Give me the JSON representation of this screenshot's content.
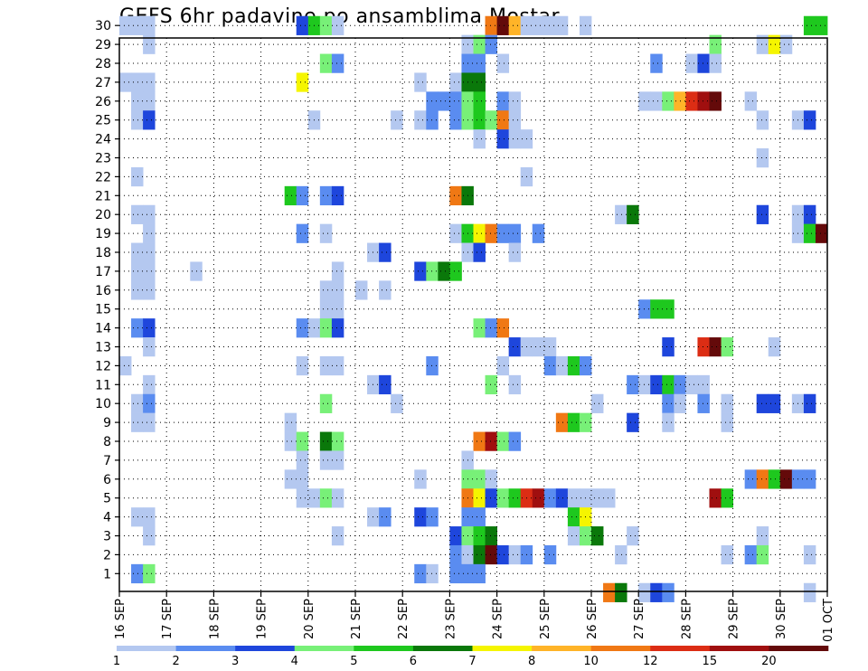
{
  "chart_data": {
    "type": "heatmap",
    "title": "GEFS 6hr padavine po ansamblima Mostar",
    "xlabel": "",
    "ylabel": "",
    "y_ticks": [
      "1",
      "2",
      "3",
      "4",
      "5",
      "6",
      "7",
      "8",
      "9",
      "10",
      "11",
      "12",
      "13",
      "14",
      "15",
      "16",
      "17",
      "18",
      "19",
      "20",
      "21",
      "22",
      "23",
      "24",
      "25",
      "26",
      "27",
      "28",
      "29",
      "30"
    ],
    "x_ticks": [
      "16 SEP",
      "17 SEP",
      "18 SEP",
      "19 SEP",
      "20 SEP",
      "21 SEP",
      "22 SEP",
      "23 SEP",
      "24 SEP",
      "25 SEP",
      "26 SEP",
      "27 SEP",
      "28 SEP",
      "29 SEP",
      "30 SEP",
      "01 OCT"
    ],
    "x_steps_per_day": 4,
    "x_steps_total": 60,
    "grid": true,
    "legend": {
      "placement": "bottom",
      "labels": [
        "1",
        "2",
        "3",
        "4",
        "5",
        "6",
        "7",
        "8",
        "10",
        "12",
        "15",
        "20"
      ],
      "colors": [
        "#b4c8f0",
        "#5a8cf0",
        "#1e46dc",
        "#78f078",
        "#1ec81e",
        "#0a780a",
        "#f5f500",
        "#ffb428",
        "#f07814",
        "#dc2d14",
        "#a00f0f",
        "#640a0a"
      ]
    },
    "cells": [
      [
        30,
        0,
        1
      ],
      [
        30,
        1,
        1
      ],
      [
        30,
        2,
        1
      ],
      [
        30,
        15,
        3
      ],
      [
        30,
        16,
        5
      ],
      [
        30,
        17,
        4
      ],
      [
        30,
        18,
        1
      ],
      [
        30,
        31,
        9
      ],
      [
        30,
        32,
        12
      ],
      [
        30,
        33,
        8
      ],
      [
        30,
        34,
        1
      ],
      [
        30,
        35,
        1
      ],
      [
        30,
        36,
        1
      ],
      [
        30,
        37,
        1
      ],
      [
        30,
        39,
        1
      ],
      [
        30,
        58,
        5
      ],
      [
        30,
        59,
        5
      ],
      [
        29,
        2,
        1
      ],
      [
        29,
        29,
        1
      ],
      [
        29,
        30,
        4
      ],
      [
        29,
        31,
        2
      ],
      [
        29,
        50,
        4
      ],
      [
        29,
        54,
        1
      ],
      [
        29,
        55,
        7
      ],
      [
        29,
        56,
        1
      ],
      [
        28,
        17,
        4
      ],
      [
        28,
        18,
        2
      ],
      [
        28,
        29,
        2
      ],
      [
        28,
        30,
        2
      ],
      [
        28,
        32,
        1
      ],
      [
        28,
        45,
        2
      ],
      [
        28,
        48,
        1
      ],
      [
        28,
        49,
        3
      ],
      [
        28,
        50,
        1
      ],
      [
        27,
        0,
        1
      ],
      [
        27,
        1,
        1
      ],
      [
        27,
        2,
        1
      ],
      [
        27,
        15,
        7
      ],
      [
        27,
        25,
        1
      ],
      [
        27,
        28,
        1
      ],
      [
        27,
        29,
        6
      ],
      [
        27,
        30,
        6
      ],
      [
        26,
        1,
        1
      ],
      [
        26,
        2,
        1
      ],
      [
        26,
        26,
        2
      ],
      [
        26,
        27,
        2
      ],
      [
        26,
        28,
        2
      ],
      [
        26,
        29,
        4
      ],
      [
        26,
        30,
        5
      ],
      [
        26,
        32,
        2
      ],
      [
        26,
        33,
        1
      ],
      [
        26,
        44,
        1
      ],
      [
        26,
        45,
        1
      ],
      [
        26,
        46,
        4
      ],
      [
        26,
        47,
        8
      ],
      [
        26,
        48,
        10
      ],
      [
        26,
        49,
        11
      ],
      [
        26,
        50,
        12
      ],
      [
        26,
        53,
        1
      ],
      [
        25,
        1,
        1
      ],
      [
        25,
        2,
        3
      ],
      [
        25,
        16,
        1
      ],
      [
        25,
        23,
        1
      ],
      [
        25,
        25,
        1
      ],
      [
        25,
        26,
        2
      ],
      [
        25,
        28,
        2
      ],
      [
        25,
        29,
        4
      ],
      [
        25,
        30,
        5
      ],
      [
        25,
        31,
        4
      ],
      [
        25,
        32,
        9
      ],
      [
        25,
        33,
        1
      ],
      [
        25,
        54,
        1
      ],
      [
        25,
        57,
        1
      ],
      [
        25,
        58,
        3
      ],
      [
        24,
        30,
        1
      ],
      [
        24,
        32,
        3
      ],
      [
        24,
        33,
        1
      ],
      [
        24,
        34,
        1
      ],
      [
        23,
        54,
        1
      ],
      [
        22,
        1,
        1
      ],
      [
        22,
        34,
        1
      ],
      [
        21,
        14,
        5
      ],
      [
        21,
        15,
        2
      ],
      [
        21,
        17,
        2
      ],
      [
        21,
        18,
        3
      ],
      [
        21,
        28,
        9
      ],
      [
        21,
        29,
        6
      ],
      [
        20,
        1,
        1
      ],
      [
        20,
        2,
        1
      ],
      [
        20,
        42,
        1
      ],
      [
        20,
        43,
        6
      ],
      [
        20,
        54,
        3
      ],
      [
        20,
        57,
        1
      ],
      [
        20,
        58,
        3
      ],
      [
        19,
        2,
        1
      ],
      [
        19,
        15,
        2
      ],
      [
        19,
        17,
        1
      ],
      [
        19,
        28,
        1
      ],
      [
        19,
        29,
        5
      ],
      [
        19,
        30,
        7
      ],
      [
        19,
        31,
        9
      ],
      [
        19,
        32,
        2
      ],
      [
        19,
        33,
        2
      ],
      [
        19,
        35,
        2
      ],
      [
        19,
        57,
        1
      ],
      [
        19,
        58,
        5
      ],
      [
        19,
        59,
        12
      ],
      [
        18,
        1,
        1
      ],
      [
        18,
        2,
        1
      ],
      [
        18,
        21,
        1
      ],
      [
        18,
        22,
        3
      ],
      [
        18,
        29,
        1
      ],
      [
        18,
        30,
        3
      ],
      [
        18,
        33,
        1
      ],
      [
        17,
        1,
        1
      ],
      [
        17,
        2,
        1
      ],
      [
        17,
        6,
        1
      ],
      [
        17,
        18,
        1
      ],
      [
        17,
        25,
        3
      ],
      [
        17,
        26,
        4
      ],
      [
        17,
        27,
        6
      ],
      [
        17,
        28,
        5
      ],
      [
        16,
        1,
        1
      ],
      [
        16,
        2,
        1
      ],
      [
        16,
        17,
        1
      ],
      [
        16,
        18,
        1
      ],
      [
        16,
        20,
        1
      ],
      [
        16,
        22,
        1
      ],
      [
        15,
        17,
        1
      ],
      [
        15,
        18,
        1
      ],
      [
        15,
        44,
        2
      ],
      [
        15,
        45,
        5
      ],
      [
        15,
        46,
        5
      ],
      [
        14,
        1,
        2
      ],
      [
        14,
        2,
        3
      ],
      [
        14,
        15,
        2
      ],
      [
        14,
        16,
        1
      ],
      [
        14,
        17,
        4
      ],
      [
        14,
        18,
        3
      ],
      [
        14,
        30,
        4
      ],
      [
        14,
        31,
        2
      ],
      [
        14,
        32,
        9
      ],
      [
        13,
        2,
        1
      ],
      [
        13,
        33,
        3
      ],
      [
        13,
        34,
        1
      ],
      [
        13,
        35,
        1
      ],
      [
        13,
        36,
        1
      ],
      [
        13,
        46,
        3
      ],
      [
        13,
        49,
        10
      ],
      [
        13,
        50,
        12
      ],
      [
        13,
        51,
        4
      ],
      [
        13,
        55,
        1
      ],
      [
        12,
        0,
        1
      ],
      [
        12,
        15,
        1
      ],
      [
        12,
        17,
        1
      ],
      [
        12,
        18,
        1
      ],
      [
        12,
        26,
        2
      ],
      [
        12,
        32,
        1
      ],
      [
        12,
        36,
        2
      ],
      [
        12,
        37,
        1
      ],
      [
        12,
        38,
        5
      ],
      [
        12,
        39,
        2
      ],
      [
        11,
        2,
        1
      ],
      [
        11,
        21,
        1
      ],
      [
        11,
        22,
        3
      ],
      [
        11,
        31,
        4
      ],
      [
        11,
        33,
        1
      ],
      [
        11,
        43,
        2
      ],
      [
        11,
        44,
        1
      ],
      [
        11,
        45,
        3
      ],
      [
        11,
        46,
        5
      ],
      [
        11,
        47,
        2
      ],
      [
        11,
        48,
        1
      ],
      [
        11,
        49,
        1
      ],
      [
        10,
        1,
        1
      ],
      [
        10,
        2,
        2
      ],
      [
        10,
        17,
        4
      ],
      [
        10,
        23,
        1
      ],
      [
        10,
        40,
        1
      ],
      [
        10,
        46,
        2
      ],
      [
        10,
        47,
        1
      ],
      [
        10,
        49,
        2
      ],
      [
        10,
        51,
        1
      ],
      [
        10,
        54,
        3
      ],
      [
        10,
        55,
        3
      ],
      [
        10,
        57,
        1
      ],
      [
        10,
        58,
        3
      ],
      [
        9,
        1,
        1
      ],
      [
        9,
        2,
        1
      ],
      [
        9,
        14,
        1
      ],
      [
        9,
        37,
        9
      ],
      [
        9,
        38,
        5
      ],
      [
        9,
        39,
        4
      ],
      [
        9,
        43,
        3
      ],
      [
        9,
        46,
        1
      ],
      [
        9,
        51,
        1
      ],
      [
        8,
        14,
        1
      ],
      [
        8,
        15,
        4
      ],
      [
        8,
        17,
        6
      ],
      [
        8,
        18,
        4
      ],
      [
        8,
        30,
        9
      ],
      [
        8,
        31,
        11
      ],
      [
        8,
        32,
        4
      ],
      [
        8,
        33,
        2
      ],
      [
        7,
        15,
        1
      ],
      [
        7,
        17,
        1
      ],
      [
        7,
        18,
        1
      ],
      [
        7,
        29,
        1
      ],
      [
        6,
        14,
        1
      ],
      [
        6,
        15,
        1
      ],
      [
        6,
        25,
        1
      ],
      [
        6,
        29,
        4
      ],
      [
        6,
        30,
        4
      ],
      [
        6,
        31,
        1
      ],
      [
        6,
        53,
        2
      ],
      [
        6,
        54,
        9
      ],
      [
        6,
        55,
        5
      ],
      [
        6,
        56,
        12
      ],
      [
        6,
        57,
        2
      ],
      [
        6,
        58,
        2
      ],
      [
        5,
        15,
        1
      ],
      [
        5,
        16,
        1
      ],
      [
        5,
        17,
        4
      ],
      [
        5,
        18,
        1
      ],
      [
        5,
        29,
        9
      ],
      [
        5,
        30,
        7
      ],
      [
        5,
        31,
        3
      ],
      [
        5,
        32,
        4
      ],
      [
        5,
        33,
        5
      ],
      [
        5,
        34,
        10
      ],
      [
        5,
        35,
        11
      ],
      [
        5,
        36,
        2
      ],
      [
        5,
        37,
        3
      ],
      [
        5,
        38,
        1
      ],
      [
        5,
        39,
        1
      ],
      [
        5,
        40,
        1
      ],
      [
        5,
        41,
        1
      ],
      [
        5,
        50,
        11
      ],
      [
        5,
        51,
        5
      ],
      [
        4,
        1,
        1
      ],
      [
        4,
        2,
        1
      ],
      [
        4,
        21,
        1
      ],
      [
        4,
        22,
        2
      ],
      [
        4,
        25,
        3
      ],
      [
        4,
        26,
        2
      ],
      [
        4,
        29,
        2
      ],
      [
        4,
        30,
        2
      ],
      [
        4,
        38,
        5
      ],
      [
        4,
        39,
        7
      ],
      [
        3,
        2,
        1
      ],
      [
        3,
        18,
        1
      ],
      [
        3,
        28,
        3
      ],
      [
        3,
        29,
        4
      ],
      [
        3,
        30,
        5
      ],
      [
        3,
        31,
        6
      ],
      [
        3,
        38,
        1
      ],
      [
        3,
        39,
        4
      ],
      [
        3,
        40,
        6
      ],
      [
        3,
        43,
        1
      ],
      [
        3,
        54,
        1
      ],
      [
        2,
        28,
        2
      ],
      [
        2,
        29,
        1
      ],
      [
        2,
        30,
        6
      ],
      [
        2,
        31,
        12
      ],
      [
        2,
        32,
        3
      ],
      [
        2,
        33,
        1
      ],
      [
        2,
        34,
        2
      ],
      [
        2,
        36,
        2
      ],
      [
        2,
        42,
        1
      ],
      [
        2,
        51,
        1
      ],
      [
        2,
        53,
        2
      ],
      [
        2,
        54,
        4
      ],
      [
        2,
        58,
        1
      ],
      [
        1,
        1,
        2
      ],
      [
        1,
        2,
        4
      ],
      [
        1,
        25,
        2
      ],
      [
        1,
        26,
        1
      ],
      [
        1,
        28,
        2
      ],
      [
        1,
        29,
        2
      ],
      [
        1,
        30,
        2
      ],
      [
        0,
        41,
        9
      ],
      [
        0,
        42,
        6
      ],
      [
        0,
        44,
        1
      ],
      [
        0,
        45,
        3
      ],
      [
        0,
        46,
        2
      ],
      [
        0,
        58,
        1
      ]
    ]
  }
}
